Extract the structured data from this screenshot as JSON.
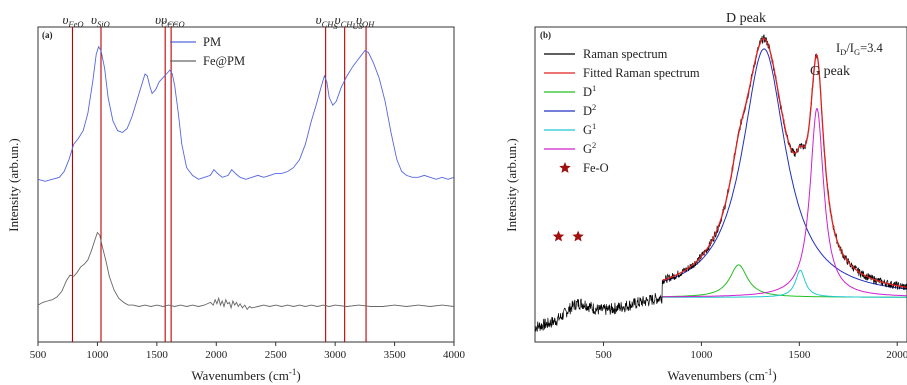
{
  "chart_data": [
    {
      "type": "line",
      "panel_label": "(a)",
      "xlabel_main": "Wavenumbers (cm",
      "xlabel_sup": "-1",
      "xlabel_end": ")",
      "ylabel": "Intensity (arb.un.)",
      "xlim": [
        500,
        4000
      ],
      "xticks": [
        "500",
        "1000",
        "1500",
        "2000",
        "2500",
        "3000",
        "3500",
        "4000"
      ],
      "xtick_values": [
        500,
        1000,
        1500,
        2000,
        2500,
        3000,
        3500,
        4000
      ],
      "legend": [
        {
          "label": "PM",
          "color": "#5566e0"
        },
        {
          "label": "Fe@PM",
          "color": "#666666"
        }
      ],
      "series": [
        {
          "name": "PM",
          "color": "#5566e0",
          "x": [
            500,
            560,
            620,
            680,
            720,
            760,
            800,
            840,
            880,
            920,
            960,
            990,
            1010,
            1030,
            1060,
            1090,
            1130,
            1170,
            1210,
            1250,
            1290,
            1330,
            1370,
            1400,
            1420,
            1440,
            1460,
            1490,
            1520,
            1550,
            1580,
            1610,
            1630,
            1650,
            1680,
            1710,
            1750,
            1800,
            1850,
            1900,
            1950,
            1980,
            2010,
            2050,
            2100,
            2130,
            2160,
            2200,
            2250,
            2300,
            2350,
            2400,
            2450,
            2500,
            2550,
            2600,
            2650,
            2700,
            2750,
            2800,
            2840,
            2880,
            2910,
            2930,
            2950,
            2980,
            3010,
            3050,
            3100,
            3150,
            3200,
            3250,
            3280,
            3320,
            3370,
            3420,
            3470,
            3520,
            3560,
            3600,
            3650,
            3700,
            3750,
            3800,
            3850,
            3900,
            3950,
            4000
          ],
          "y": [
            0.26,
            0.25,
            0.26,
            0.27,
            0.3,
            0.36,
            0.44,
            0.47,
            0.51,
            0.6,
            0.76,
            0.9,
            0.94,
            0.92,
            0.83,
            0.68,
            0.56,
            0.51,
            0.5,
            0.52,
            0.58,
            0.66,
            0.74,
            0.8,
            0.79,
            0.74,
            0.7,
            0.72,
            0.76,
            0.78,
            0.8,
            0.82,
            0.8,
            0.74,
            0.6,
            0.44,
            0.32,
            0.28,
            0.26,
            0.27,
            0.28,
            0.31,
            0.29,
            0.27,
            0.28,
            0.31,
            0.29,
            0.27,
            0.26,
            0.27,
            0.28,
            0.27,
            0.28,
            0.29,
            0.29,
            0.3,
            0.32,
            0.36,
            0.44,
            0.56,
            0.64,
            0.73,
            0.79,
            0.76,
            0.68,
            0.64,
            0.66,
            0.73,
            0.79,
            0.84,
            0.88,
            0.92,
            0.91,
            0.86,
            0.78,
            0.66,
            0.5,
            0.36,
            0.3,
            0.28,
            0.27,
            0.27,
            0.28,
            0.27,
            0.26,
            0.27,
            0.26,
            0.27
          ]
        },
        {
          "name": "Fe@PM",
          "color": "#666666",
          "x": [
            500,
            540,
            580,
            620,
            660,
            700,
            740,
            770,
            800,
            830,
            860,
            890,
            920,
            950,
            980,
            1000,
            1020,
            1040,
            1070,
            1100,
            1140,
            1180,
            1220,
            1260,
            1300,
            1350,
            1400,
            1450,
            1500,
            1550,
            1600,
            1650,
            1700,
            1750,
            1800,
            1850,
            1900,
            1950,
            1975,
            1990,
            2005,
            2020,
            2035,
            2050,
            2065,
            2080,
            2095,
            2110,
            2125,
            2140,
            2155,
            2170,
            2185,
            2200,
            2220,
            2240,
            2260,
            2280,
            2300,
            2350,
            2400,
            2450,
            2500,
            2550,
            2600,
            2650,
            2700,
            2750,
            2800,
            2850,
            2900,
            2950,
            3000,
            3100,
            3200,
            3300,
            3400,
            3500,
            3600,
            3700,
            3800,
            3900,
            4000
          ],
          "y": [
            0.05,
            0.07,
            0.08,
            0.09,
            0.11,
            0.15,
            0.23,
            0.27,
            0.26,
            0.29,
            0.33,
            0.35,
            0.38,
            0.45,
            0.53,
            0.58,
            0.56,
            0.48,
            0.38,
            0.26,
            0.16,
            0.1,
            0.07,
            0.05,
            0.05,
            0.04,
            0.05,
            0.04,
            0.05,
            0.04,
            0.05,
            0.04,
            0.05,
            0.04,
            0.05,
            0.04,
            0.05,
            0.07,
            0.05,
            0.09,
            0.06,
            0.1,
            0.05,
            0.08,
            0.04,
            0.09,
            0.06,
            0.07,
            0.03,
            0.08,
            0.05,
            0.07,
            0.04,
            0.06,
            0.03,
            0.05,
            0.02,
            0.04,
            0.03,
            0.04,
            0.05,
            0.04,
            0.05,
            0.04,
            0.05,
            0.04,
            0.05,
            0.04,
            0.05,
            0.04,
            0.05,
            0.04,
            0.05,
            0.04,
            0.05,
            0.04,
            0.04,
            0.05,
            0.04,
            0.05,
            0.04,
            0.05,
            0.04
          ]
        }
      ],
      "vlines": [
        {
          "x": 790,
          "sym": "υ",
          "sub": "FeO"
        },
        {
          "x": 1030,
          "sym": "υ",
          "sub": "SiO"
        },
        {
          "x": 1570,
          "sym": "υ",
          "sub": "C=C"
        },
        {
          "x": 1620,
          "sym": "υ",
          "sub": "C=O"
        },
        {
          "x": 2920,
          "sym": "υ",
          "sub": "CH",
          "sub2": "S"
        },
        {
          "x": 3080,
          "sym": "υ",
          "sub": "CH",
          "sub2": "US"
        },
        {
          "x": 3260,
          "sym": "υ",
          "sub": "OH"
        }
      ],
      "vline_color": "#c00000"
    },
    {
      "type": "line",
      "panel_label": "(b)",
      "xlabel_main": "Wavenumbers (cm",
      "xlabel_sup": "-1",
      "xlabel_end": ")",
      "ylabel": "Intensity (arb.un.)",
      "xlim": [
        150,
        2050
      ],
      "xticks": [
        "500",
        "1000",
        "1500",
        "2000"
      ],
      "xtick_values": [
        500,
        1000,
        1500,
        2000
      ],
      "annotations": {
        "d_peak": "D peak",
        "g_peak": "G peak",
        "ratio_main": "I",
        "ratio_sub1": "D",
        "ratio_mid": "/I",
        "ratio_sub2": "G",
        "ratio_end": "=3.4"
      },
      "legend": [
        {
          "label": "Raman spectrum",
          "color": "#000000",
          "kind": "line"
        },
        {
          "label": "Fitted Raman spectrum",
          "color": "#e02020",
          "kind": "line"
        },
        {
          "label": "D",
          "sup": "1",
          "color": "#22c022",
          "kind": "line"
        },
        {
          "label": "D",
          "sup": "2",
          "color": "#2030c0",
          "kind": "line"
        },
        {
          "label": "G",
          "sup": "1",
          "color": "#20c8d0",
          "kind": "line"
        },
        {
          "label": "G",
          "sup": "2",
          "color": "#d020d0",
          "kind": "line"
        },
        {
          "label": "Fe-O",
          "color": "#a01010",
          "kind": "star"
        }
      ],
      "star_x": [
        270,
        370
      ],
      "star_y": 0.235,
      "fit_range": [
        800,
        2050
      ],
      "components": [
        {
          "name": "D1",
          "center": 1190,
          "width": 55,
          "height": 0.12,
          "color": "#22c022"
        },
        {
          "name": "D2",
          "center": 1320,
          "width": 135,
          "height": 0.92,
          "color": "#2030c0"
        },
        {
          "name": "G1",
          "center": 1505,
          "width": 30,
          "height": 0.1,
          "color": "#20c8d0"
        },
        {
          "name": "G2",
          "center": 1590,
          "width": 42,
          "height": 0.7,
          "color": "#d020d0"
        }
      ],
      "baseline": 0.01,
      "raw_extra": {
        "low_end": 150,
        "low_value": -0.1,
        "bump_center": 370,
        "bump_height": 0.05,
        "bump_width": 80
      }
    }
  ]
}
